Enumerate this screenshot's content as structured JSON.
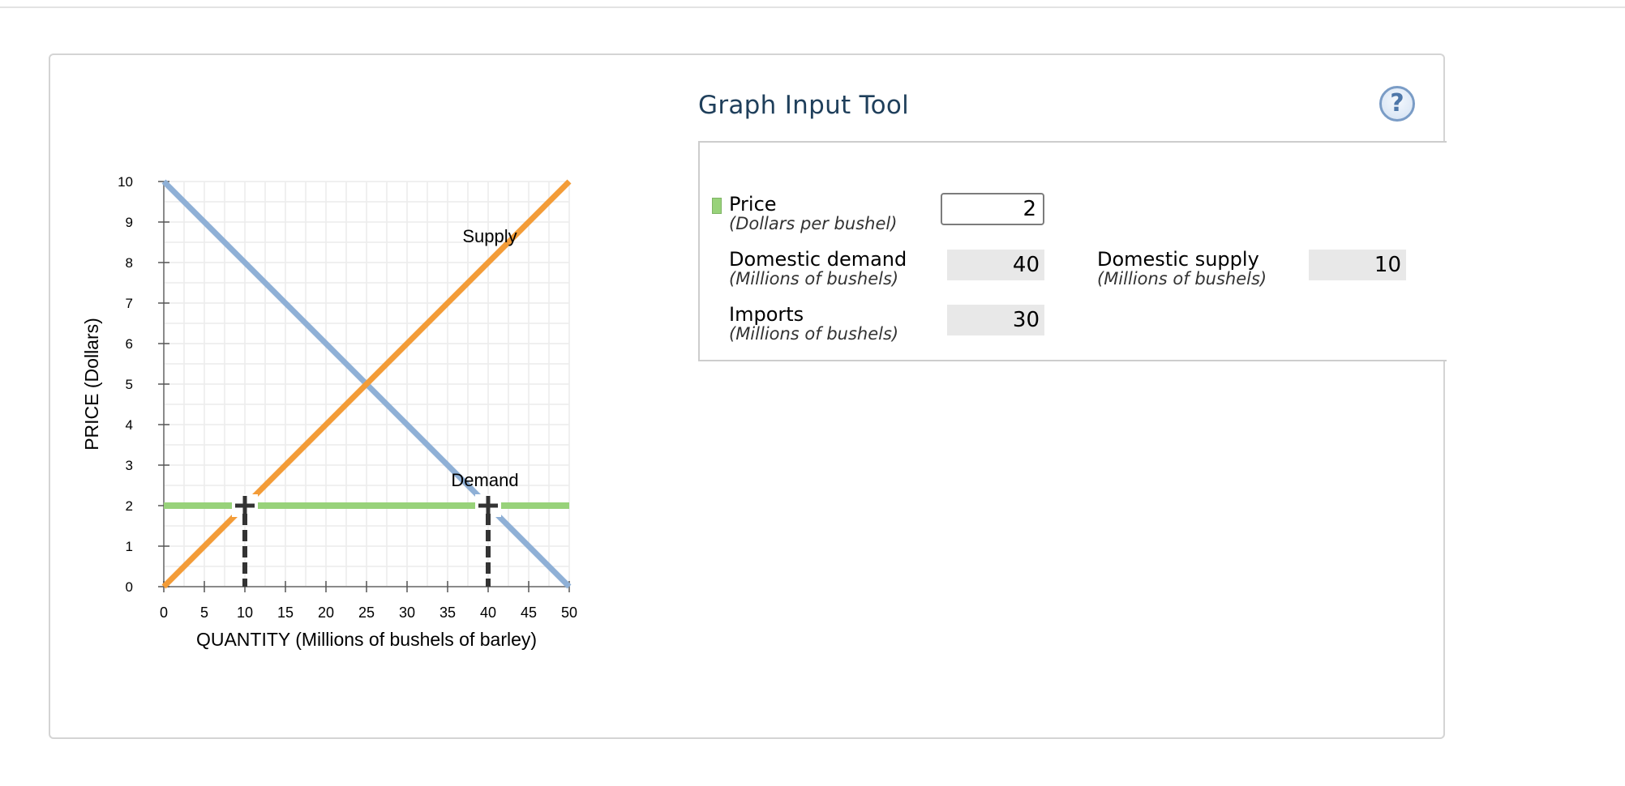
{
  "tool": {
    "title": "Graph Input Tool",
    "help_icon": "?"
  },
  "fields": {
    "price": {
      "label": "Price",
      "unit": "(Dollars per bushel)",
      "value": "2"
    },
    "domestic_demand": {
      "label": "Domestic demand",
      "unit": "(Millions of bushels)",
      "value": "40"
    },
    "domestic_supply": {
      "label": "Domestic supply",
      "unit": "(Millions of bushels)",
      "value": "10"
    },
    "imports": {
      "label": "Imports",
      "unit": "(Millions of bushels)",
      "value": "30"
    }
  },
  "colors": {
    "demand": "#8fb0d6",
    "supply": "#f39c38",
    "price_line": "#98d27a",
    "drop_line": "#333333",
    "grid": "#ececec"
  },
  "chart_data": {
    "type": "line",
    "xlabel": "QUANTITY (Millions of bushels of barley)",
    "ylabel": "PRICE (Dollars)",
    "xlim": [
      0,
      50
    ],
    "ylim": [
      0,
      10
    ],
    "xticks": [
      "0",
      "5",
      "10",
      "15",
      "20",
      "25",
      "30",
      "35",
      "40",
      "45",
      "50"
    ],
    "yticks": [
      "0",
      "1",
      "2",
      "3",
      "4",
      "5",
      "6",
      "7",
      "8",
      "9",
      "10"
    ],
    "grid": true,
    "series": [
      {
        "name": "Demand",
        "x": [
          0,
          50
        ],
        "y": [
          10,
          0
        ]
      },
      {
        "name": "Supply",
        "x": [
          0,
          50
        ],
        "y": [
          0,
          10
        ]
      }
    ],
    "price_line": {
      "y": 2,
      "x": [
        0,
        50
      ]
    },
    "markers": [
      {
        "x": 10,
        "y": 2
      },
      {
        "x": 40,
        "y": 2
      }
    ]
  }
}
